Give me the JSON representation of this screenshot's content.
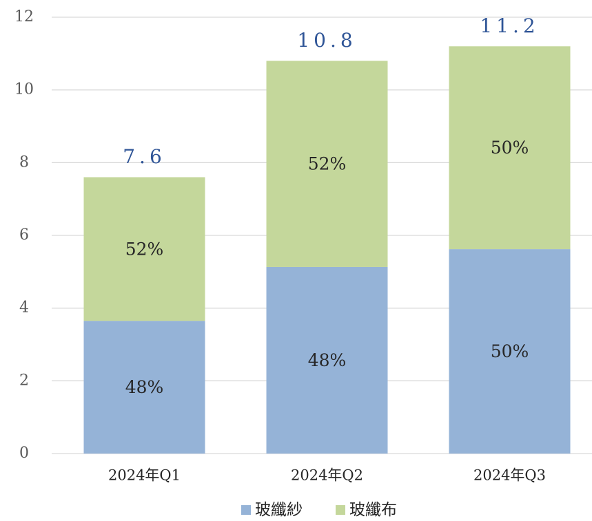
{
  "chart_data": {
    "type": "stacked_bar",
    "categories": [
      "2024年Q1",
      "2024年Q2",
      "2024年Q3"
    ],
    "series": [
      {
        "name": "玻纖紗",
        "color": "#95b3d7",
        "values": [
          3.65,
          5.13,
          5.62
        ],
        "value_labels": [
          "48%",
          "48%",
          "50%"
        ]
      },
      {
        "name": "玻纖布",
        "color": "#c4d79b",
        "values": [
          3.95,
          5.67,
          5.58
        ],
        "value_labels": [
          "52%",
          "52%",
          "50%"
        ]
      }
    ],
    "totals": [
      7.6,
      10.8,
      11.2
    ],
    "ylim": [
      0,
      12
    ],
    "yticks": [
      0,
      2,
      4,
      6,
      8,
      10,
      12
    ],
    "grid": true,
    "legend": "bottom"
  }
}
